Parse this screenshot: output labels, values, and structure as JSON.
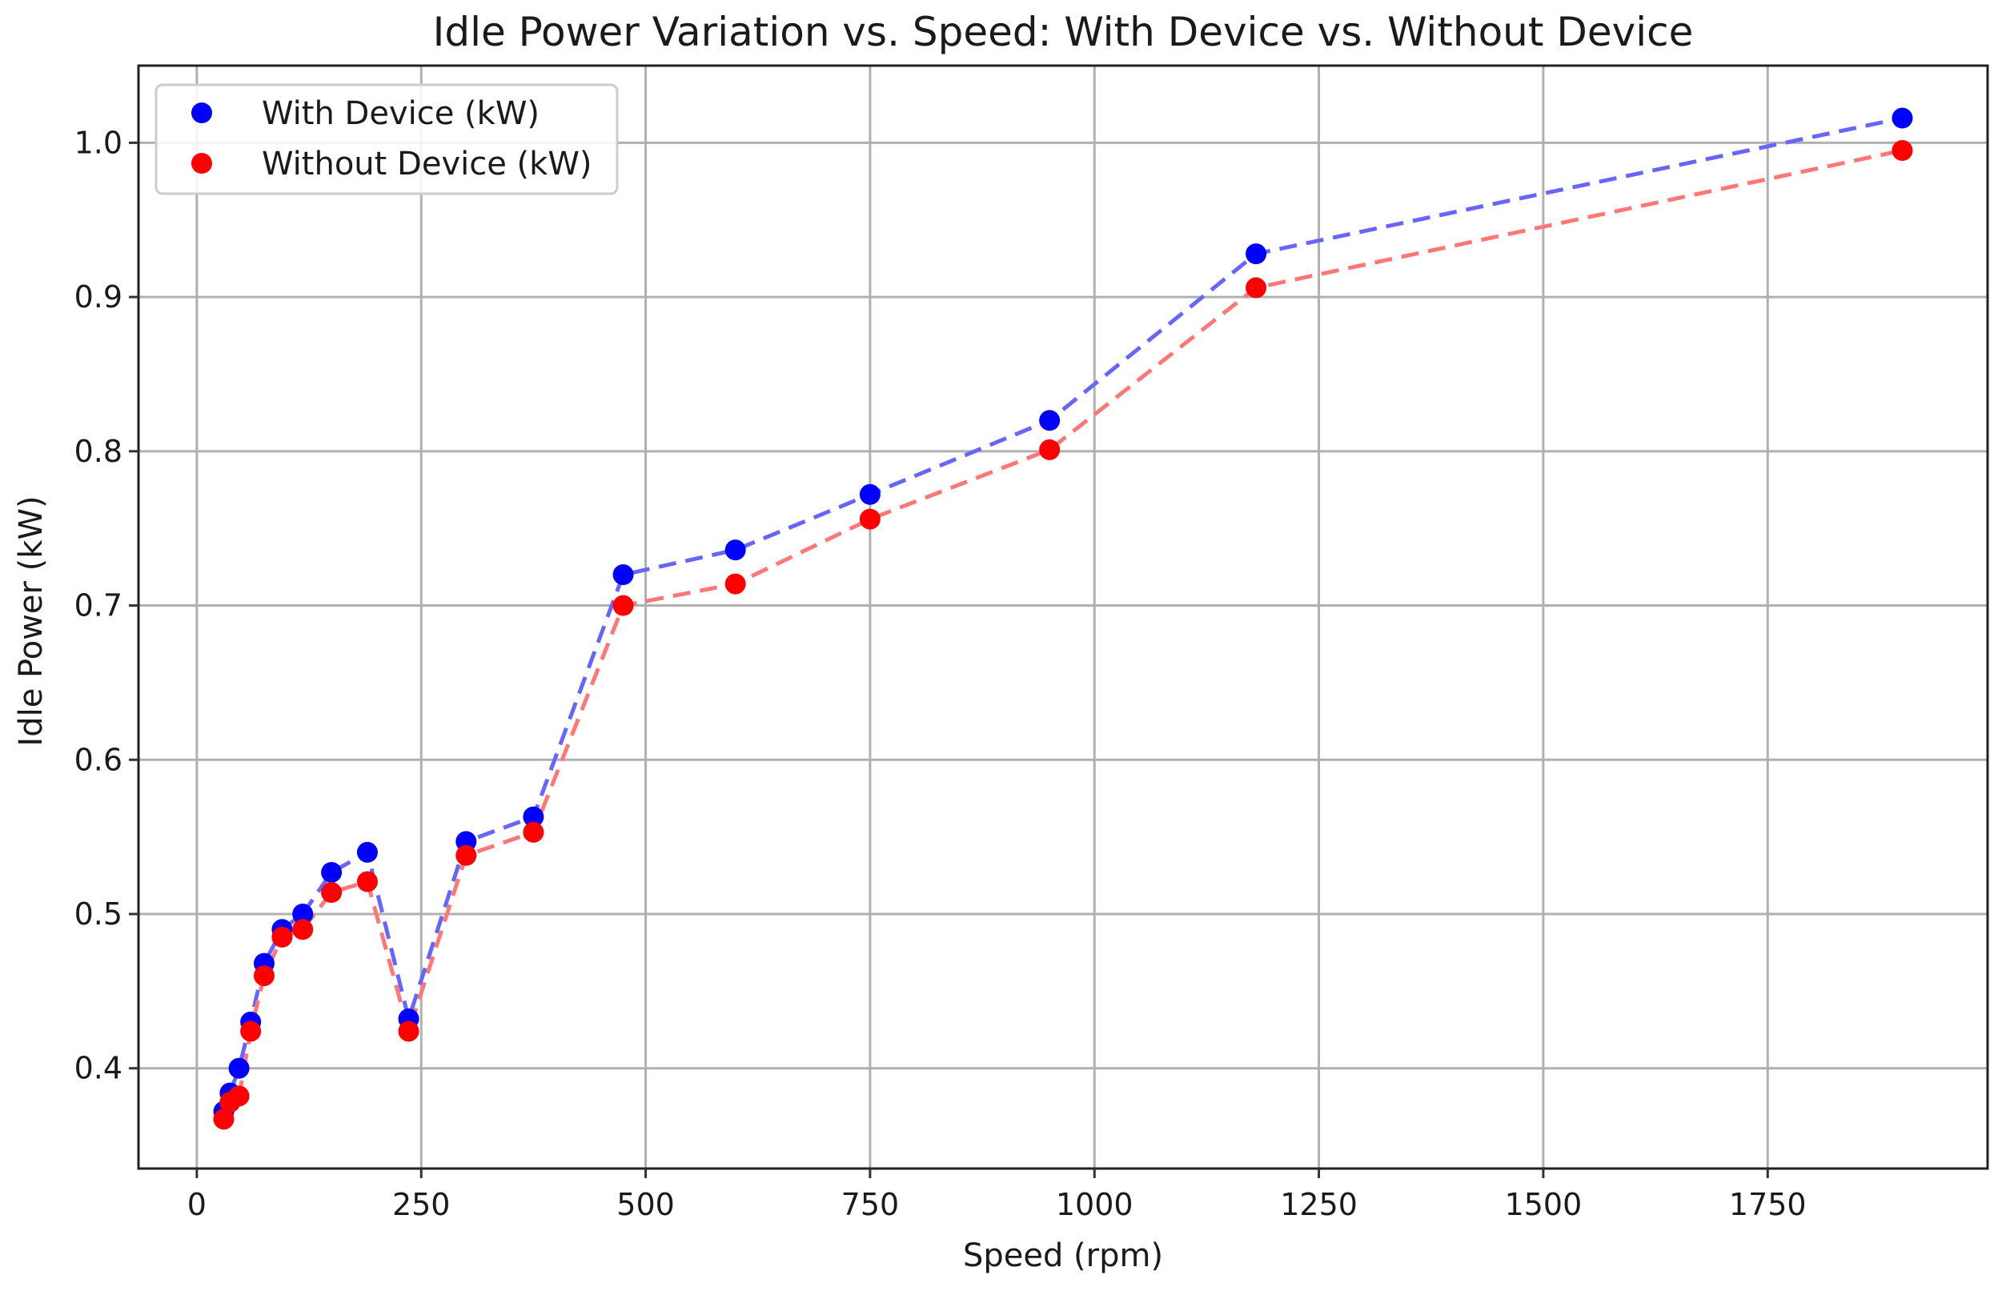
{
  "chart_data": {
    "type": "line",
    "title": "Idle Power Variation vs. Speed: With Device vs. Without Device",
    "xlabel": "Speed (rpm)",
    "ylabel": "Idle Power (kW)",
    "xlim": [
      -65,
      1995
    ],
    "ylim": [
      0.335,
      1.05
    ],
    "x_ticks": [
      0,
      250,
      500,
      750,
      1000,
      1250,
      1500,
      1750
    ],
    "x_tick_labels": [
      "0",
      "250",
      "500",
      "750",
      "1000",
      "1250",
      "1500",
      "1750"
    ],
    "y_ticks": [
      0.4,
      0.5,
      0.6,
      0.7,
      0.8,
      0.9,
      1.0
    ],
    "y_tick_labels": [
      "0.4",
      "0.5",
      "0.6",
      "0.7",
      "0.8",
      "0.9",
      "1.0"
    ],
    "grid": true,
    "legend_position": "top-left",
    "line_style": "dashed",
    "series": [
      {
        "name": "With Device (kW)",
        "color": "#0000ff",
        "line_color": "#6666ff",
        "x": [
          30,
          37,
          47,
          60,
          75,
          95,
          118,
          150,
          190,
          236,
          300,
          375,
          475,
          600,
          750,
          950,
          1180,
          1900
        ],
        "y": [
          0.372,
          0.384,
          0.4,
          0.43,
          0.468,
          0.49,
          0.5,
          0.527,
          0.54,
          0.432,
          0.547,
          0.563,
          0.72,
          0.736,
          0.772,
          0.82,
          0.928,
          1.016
        ]
      },
      {
        "name": "Without Device (kW)",
        "color": "#ff0000",
        "line_color": "#ff7777",
        "x": [
          30,
          37,
          47,
          60,
          75,
          95,
          118,
          150,
          190,
          236,
          300,
          375,
          475,
          600,
          750,
          950,
          1180,
          1900
        ],
        "y": [
          0.367,
          0.378,
          0.382,
          0.424,
          0.46,
          0.485,
          0.49,
          0.514,
          0.521,
          0.424,
          0.538,
          0.553,
          0.7,
          0.714,
          0.756,
          0.801,
          0.906,
          0.995
        ]
      }
    ]
  }
}
